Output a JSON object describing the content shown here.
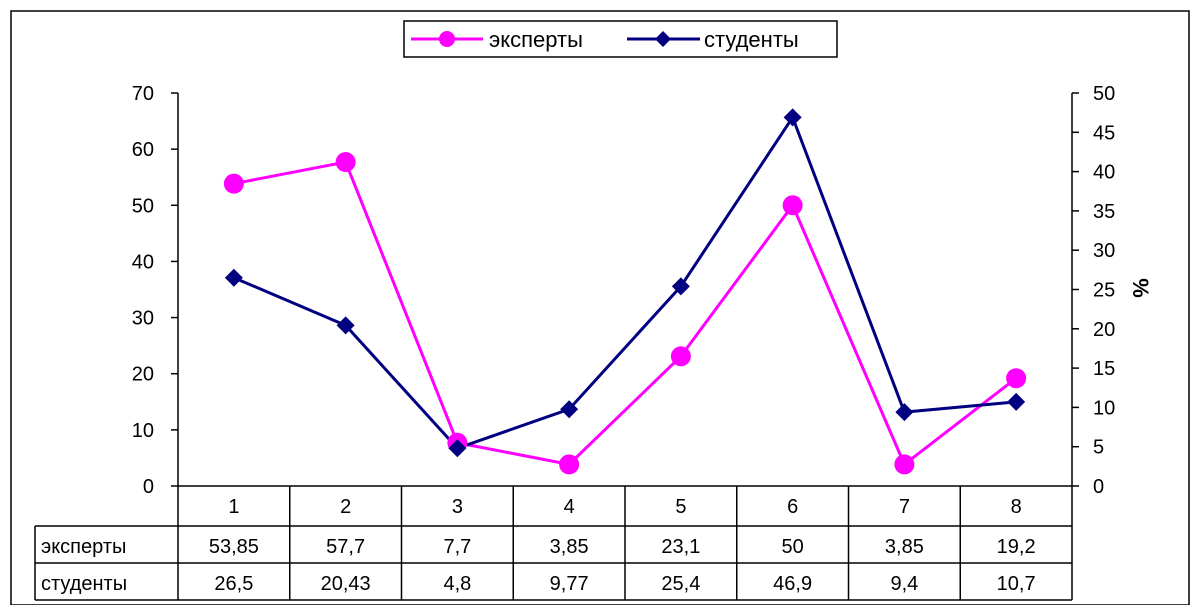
{
  "chart_data": {
    "type": "line",
    "categories": [
      "1",
      "2",
      "3",
      "4",
      "5",
      "6",
      "7",
      "8"
    ],
    "series": [
      {
        "name": "эксперты",
        "values": [
          53.85,
          57.7,
          7.7,
          3.85,
          23.1,
          50,
          3.85,
          19.2
        ],
        "color": "#FF00FF",
        "marker": "circle",
        "axis": "left"
      },
      {
        "name": "студенты",
        "values": [
          26.5,
          20.43,
          4.8,
          9.77,
          25.4,
          46.9,
          9.4,
          10.7
        ],
        "color": "#000080",
        "marker": "diamond",
        "axis": "right"
      }
    ],
    "table_values": [
      [
        "53,85",
        "57,7",
        "7,7",
        "3,85",
        "23,1",
        "50",
        "3,85",
        "19,2"
      ],
      [
        "26,5",
        "20,43",
        "4,8",
        "9,77",
        "25,4",
        "46,9",
        "9,4",
        "10,7"
      ]
    ],
    "y_left": {
      "min": 0,
      "max": 70,
      "step": 10,
      "ticks": [
        "0",
        "10",
        "20",
        "30",
        "40",
        "50",
        "60",
        "70"
      ]
    },
    "y_right": {
      "min": 0,
      "max": 50,
      "step": 5,
      "label": "%",
      "ticks": [
        "0",
        "5",
        "10",
        "15",
        "20",
        "25",
        "30",
        "35",
        "40",
        "45",
        "50"
      ]
    },
    "legend_position": "top-center",
    "grid": false,
    "data_table": true
  }
}
